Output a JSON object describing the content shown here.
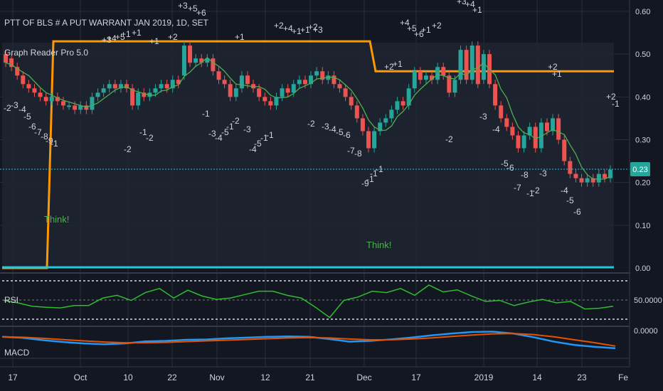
{
  "header": {
    "title": "PTT OF BLS # A PUT WARRANT JAN 2019, 1D, SET",
    "indicator": "Graph Reader Pro 5.0"
  },
  "colors": {
    "background": "#131722",
    "up": "#26a69a",
    "down": "#ef5350",
    "ma": "#4caf50",
    "orange": "#ff9800",
    "cyan": "#26c6da",
    "rsi": "#2ebd2e",
    "macd": "#2196f3",
    "signal": "#e65100"
  },
  "price_axis": {
    "ticks": [
      "0.60",
      "0.50",
      "0.40",
      "0.30",
      "0.20",
      "0.10",
      "0.00"
    ],
    "current": "0.23"
  },
  "rsi_panel": {
    "label": "RSI",
    "tick": "50.0000"
  },
  "macd_panel": {
    "label": "MACD",
    "tick": "0.0000"
  },
  "time_axis": [
    "17",
    "Oct",
    "10",
    "22",
    "Nov",
    "12",
    "21",
    "Dec",
    "17",
    "2019",
    "14",
    "23",
    "Fe"
  ],
  "annotations": {
    "think": [
      "Think!",
      "Think!"
    ],
    "counts": [
      "+3",
      "+5",
      "+6",
      "+1",
      "+1",
      "+2",
      "+3",
      "+4",
      "+5",
      "+1",
      "+1",
      "+2",
      "+4",
      "+1",
      "+1",
      "+2",
      "+3",
      "+4",
      "+5",
      "+6",
      "+1",
      "+2",
      "+3",
      "+4",
      "+1",
      "+2",
      "+1",
      "+2",
      "+1",
      "+2",
      "-1",
      "-2",
      "-3",
      "-4",
      "-5",
      "-6",
      "-7",
      "-8",
      "-9",
      "-1",
      "-1",
      "-2",
      "-1",
      "-2",
      "-3",
      "-4",
      "-5",
      "-1",
      "-2",
      "-3",
      "-4",
      "-5",
      "-1",
      "-1",
      "-2",
      "-3",
      "-4",
      "-5",
      "-6",
      "-7",
      "-8",
      "-9",
      "-1",
      "-1",
      "-1",
      "-2",
      "-3",
      "-4",
      "-5",
      "-6",
      "-7",
      "-8",
      "-1",
      "-2",
      "-3",
      "-4",
      "-5",
      "-6"
    ]
  },
  "chart_data": {
    "type": "candlestick",
    "title": "PTT OF BLS # A PUT WARRANT JAN 2019, 1D, SET",
    "price_axis_range": [
      0,
      0.6
    ],
    "current_price": 0.23,
    "candles": [
      [
        0.5,
        0.48
      ],
      [
        0.49,
        0.47
      ],
      [
        0.47,
        0.45
      ],
      [
        0.45,
        0.43
      ],
      [
        0.43,
        0.42
      ],
      [
        0.42,
        0.41
      ],
      [
        0.41,
        0.4
      ],
      [
        0.4,
        0.39
      ],
      [
        0.39,
        0.4
      ],
      [
        0.4,
        0.39
      ],
      [
        0.39,
        0.38
      ],
      [
        0.38,
        0.38
      ],
      [
        0.38,
        0.37
      ],
      [
        0.37,
        0.38
      ],
      [
        0.38,
        0.37
      ],
      [
        0.37,
        0.4
      ],
      [
        0.4,
        0.41
      ],
      [
        0.41,
        0.42
      ],
      [
        0.42,
        0.43
      ],
      [
        0.43,
        0.42
      ],
      [
        0.42,
        0.43
      ],
      [
        0.43,
        0.42
      ],
      [
        0.42,
        0.38
      ],
      [
        0.38,
        0.41
      ],
      [
        0.41,
        0.4
      ],
      [
        0.4,
        0.41
      ],
      [
        0.41,
        0.42
      ],
      [
        0.42,
        0.43
      ],
      [
        0.43,
        0.42
      ],
      [
        0.42,
        0.44
      ],
      [
        0.44,
        0.43
      ],
      [
        0.45,
        0.52
      ],
      [
        0.52,
        0.48
      ],
      [
        0.48,
        0.49
      ],
      [
        0.49,
        0.48
      ],
      [
        0.48,
        0.49
      ],
      [
        0.49,
        0.46
      ],
      [
        0.46,
        0.44
      ],
      [
        0.44,
        0.43
      ],
      [
        0.43,
        0.4
      ],
      [
        0.4,
        0.42
      ],
      [
        0.42,
        0.45
      ],
      [
        0.45,
        0.43
      ],
      [
        0.43,
        0.42
      ],
      [
        0.42,
        0.4
      ],
      [
        0.4,
        0.39
      ],
      [
        0.39,
        0.38
      ],
      [
        0.38,
        0.4
      ],
      [
        0.4,
        0.42
      ],
      [
        0.42,
        0.41
      ],
      [
        0.41,
        0.43
      ],
      [
        0.43,
        0.44
      ],
      [
        0.44,
        0.43
      ],
      [
        0.43,
        0.45
      ],
      [
        0.45,
        0.46
      ],
      [
        0.46,
        0.44
      ],
      [
        0.44,
        0.45
      ],
      [
        0.45,
        0.43
      ],
      [
        0.43,
        0.42
      ],
      [
        0.42,
        0.4
      ],
      [
        0.4,
        0.38
      ],
      [
        0.38,
        0.35
      ],
      [
        0.35,
        0.32
      ],
      [
        0.32,
        0.28
      ],
      [
        0.28,
        0.32
      ],
      [
        0.32,
        0.34
      ],
      [
        0.34,
        0.35
      ],
      [
        0.35,
        0.37
      ],
      [
        0.37,
        0.39
      ],
      [
        0.39,
        0.38
      ],
      [
        0.38,
        0.42
      ],
      [
        0.42,
        0.46
      ],
      [
        0.46,
        0.44
      ],
      [
        0.44,
        0.45
      ],
      [
        0.45,
        0.44
      ],
      [
        0.44,
        0.47
      ],
      [
        0.47,
        0.45
      ],
      [
        0.45,
        0.41
      ],
      [
        0.41,
        0.44
      ],
      [
        0.44,
        0.51
      ],
      [
        0.51,
        0.44
      ],
      [
        0.44,
        0.52
      ],
      [
        0.52,
        0.43
      ],
      [
        0.44,
        0.5
      ],
      [
        0.5,
        0.43
      ],
      [
        0.43,
        0.38
      ],
      [
        0.38,
        0.35
      ],
      [
        0.35,
        0.33
      ],
      [
        0.33,
        0.31
      ],
      [
        0.31,
        0.28
      ],
      [
        0.28,
        0.31
      ],
      [
        0.31,
        0.33
      ],
      [
        0.33,
        0.28
      ],
      [
        0.28,
        0.34
      ],
      [
        0.34,
        0.32
      ],
      [
        0.32,
        0.35
      ],
      [
        0.35,
        0.3
      ],
      [
        0.3,
        0.25
      ],
      [
        0.25,
        0.22
      ],
      [
        0.22,
        0.21
      ],
      [
        0.21,
        0.2
      ],
      [
        0.2,
        0.21
      ],
      [
        0.21,
        0.2
      ],
      [
        0.2,
        0.22
      ],
      [
        0.22,
        0.21
      ],
      [
        0.21,
        0.23
      ]
    ],
    "orange_line": {
      "x": [
        0,
        9,
        10,
        70,
        71,
        107
      ],
      "y": [
        0.0,
        0.0,
        0.53,
        0.53,
        0.46,
        0.46
      ]
    },
    "rsi": [
      0.55,
      0.48,
      0.38,
      0.35,
      0.33,
      0.4,
      0.4,
      0.62,
      0.7,
      0.55,
      0.78,
      0.9,
      0.62,
      0.85,
      0.68,
      0.58,
      0.62,
      0.72,
      0.82,
      0.82,
      0.7,
      0.62,
      0.35,
      0.05,
      0.55,
      0.65,
      0.82,
      0.78,
      0.9,
      0.7,
      1.0,
      0.8,
      0.86,
      0.68,
      0.52,
      0.55,
      0.4,
      0.5,
      0.58,
      0.48,
      0.52,
      0.3,
      0.32,
      0.38
    ],
    "macd": [
      0.3,
      0.35,
      0.48,
      0.58,
      0.66,
      0.7,
      0.66,
      0.55,
      0.52,
      0.46,
      0.44,
      0.38,
      0.34,
      0.3,
      0.28,
      0.3,
      0.42,
      0.56,
      0.52,
      0.44,
      0.34,
      0.22,
      0.12,
      0.04,
      0.02,
      0.12,
      0.32,
      0.56,
      0.74,
      0.84,
      0.92
    ],
    "signal": [
      0.3,
      0.32,
      0.38,
      0.45,
      0.52,
      0.58,
      0.62,
      0.62,
      0.6,
      0.56,
      0.52,
      0.48,
      0.44,
      0.4,
      0.36,
      0.34,
      0.36,
      0.42,
      0.46,
      0.46,
      0.42,
      0.36,
      0.28,
      0.2,
      0.14,
      0.12,
      0.18,
      0.3,
      0.46,
      0.62,
      0.8
    ]
  }
}
